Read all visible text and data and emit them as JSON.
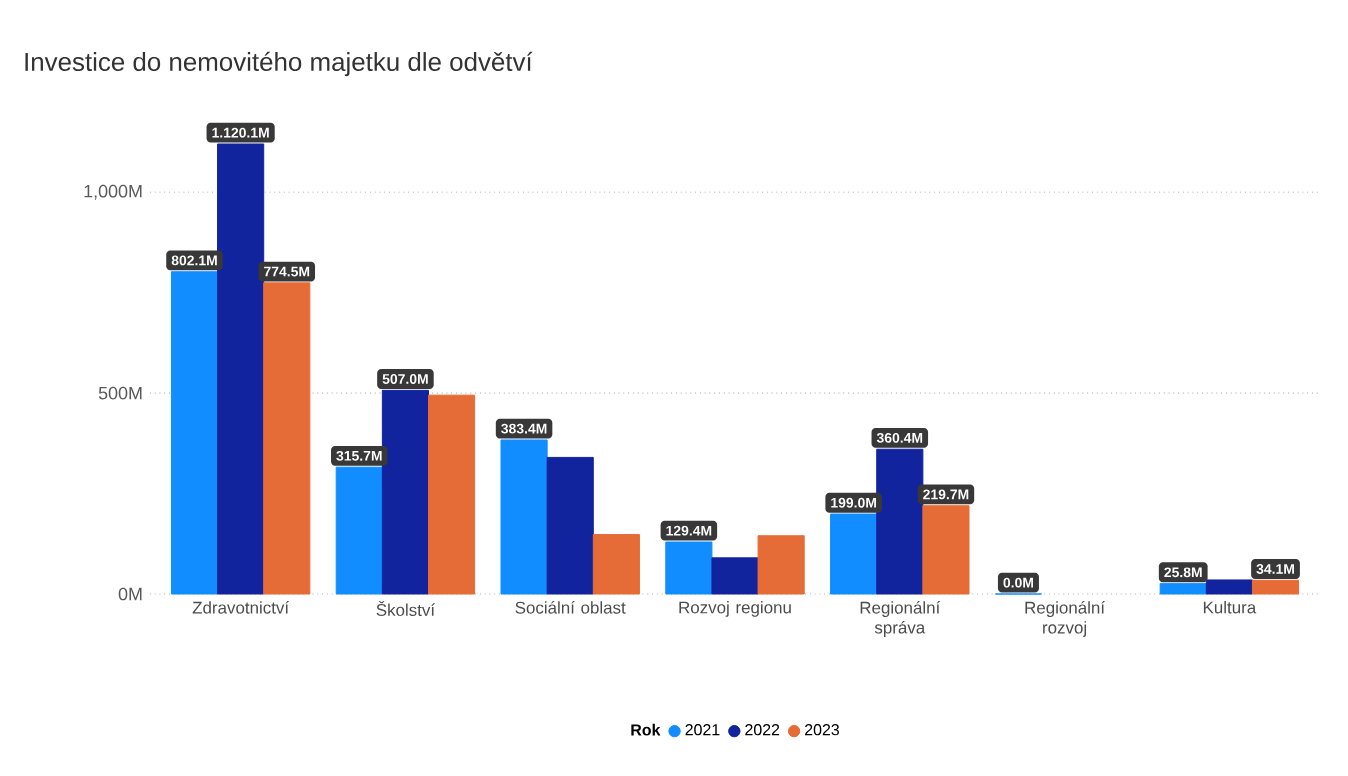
{
  "chart_data": {
    "type": "bar",
    "title": "Investice do nemovitého majetku dle odvětví",
    "categories": [
      "Zdravotnictví",
      "Školství",
      "Sociální oblast",
      "Rozvoj regionu",
      "Regionální správa",
      "Regionální rozvoj",
      "Kultura"
    ],
    "series": [
      {
        "name": "2021",
        "color": "#118dff",
        "values": [
          802.1,
          315.7,
          383.4,
          129.4,
          199.0,
          0.0,
          25.8
        ],
        "value_labels": [
          "802.1M",
          "315.7M",
          "383.4M",
          "129.4M",
          "199.0M",
          "0.0M",
          "25.8M"
        ]
      },
      {
        "name": "2022",
        "color": "#12239e",
        "values": [
          1120.1,
          507.0,
          340,
          90,
          360.4,
          null,
          35
        ],
        "value_labels": [
          "1.120.1M",
          "507.0M",
          null,
          null,
          "360.4M",
          null,
          null
        ]
      },
      {
        "name": "2023",
        "color": "#e66c37",
        "values": [
          774.5,
          495,
          148,
          145,
          219.7,
          null,
          34.1
        ],
        "value_labels": [
          "774.5M",
          null,
          null,
          null,
          "219.7M",
          null,
          "34.1M"
        ]
      }
    ],
    "ylim": [
      0,
      1120.1
    ],
    "legend_title": "Rok",
    "legend": "bottom",
    "grid": "y",
    "yticks": [
      {
        "value": 0,
        "label": "0M"
      },
      {
        "value": 500,
        "label": "500M"
      },
      {
        "value": 1000,
        "label": "1,000M"
      }
    ]
  }
}
